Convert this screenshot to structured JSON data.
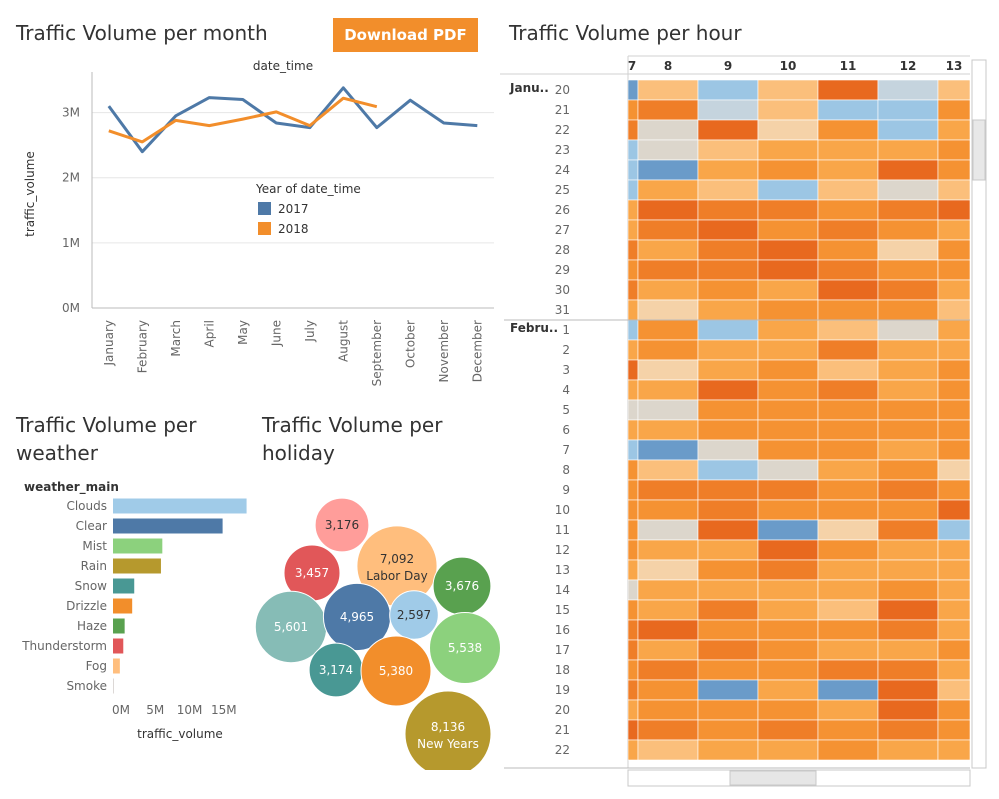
{
  "download_label": "Download PDF",
  "colors": {
    "series_2017": "#4e79a7",
    "series_2018": "#f28e2b",
    "grid": "#e6e6e6",
    "axis": "#bbbbbb"
  },
  "month_panel": {
    "title": "Traffic Volume per month"
  },
  "weather_panel": {
    "title": "Traffic Volume per weather"
  },
  "holiday_panel": {
    "title": "Traffic Volume per holiday"
  },
  "hour_panel": {
    "title": "Traffic Volume per hour"
  },
  "chart_data": [
    {
      "type": "line",
      "title": "Traffic Volume per month",
      "xlabel": "date_time",
      "ylabel": "traffic_volume",
      "ylim": [
        0,
        3500000
      ],
      "y_ticks": [
        {
          "v": 0,
          "label": "0M"
        },
        {
          "v": 1000000,
          "label": "1M"
        },
        {
          "v": 2000000,
          "label": "2M"
        },
        {
          "v": 3000000,
          "label": "3M"
        }
      ],
      "categories": [
        "January",
        "February",
        "March",
        "April",
        "May",
        "June",
        "July",
        "August",
        "September",
        "October",
        "November",
        "December"
      ],
      "legend_title": "Year of date_time",
      "legend_position": "middle-right",
      "grid": true,
      "series": [
        {
          "name": "2017",
          "values": [
            3100000,
            2400000,
            2950000,
            3230000,
            3200000,
            2840000,
            2770000,
            3380000,
            2770000,
            3190000,
            2840000,
            2800000
          ]
        },
        {
          "name": "2018",
          "values": [
            2720000,
            2550000,
            2880000,
            2800000,
            2900000,
            3010000,
            2800000,
            3220000,
            3090000,
            null,
            null,
            null
          ]
        }
      ]
    },
    {
      "type": "bar",
      "orientation": "horizontal",
      "title": "Traffic Volume per weather",
      "category_header": "weather_main",
      "xlabel": "traffic_volume",
      "xlim": [
        0,
        20000000
      ],
      "x_ticks": [
        {
          "v": 0,
          "label": "0M"
        },
        {
          "v": 5000000,
          "label": "5M"
        },
        {
          "v": 10000000,
          "label": "10M"
        },
        {
          "v": 15000000,
          "label": "15M"
        }
      ],
      "categories": [
        "Clouds",
        "Clear",
        "Mist",
        "Rain",
        "Snow",
        "Drizzle",
        "Haze",
        "Thunderstorm",
        "Fog",
        "Smoke"
      ],
      "values": [
        19500000,
        16000000,
        7200000,
        7000000,
        3100000,
        2800000,
        1700000,
        1500000,
        1000000,
        50000
      ],
      "colors": [
        "#a0cbe8",
        "#4e79a7",
        "#8cd17d",
        "#b6992d",
        "#499894",
        "#f28e2b",
        "#59a14f",
        "#e15759",
        "#ffbe7d",
        "#bab0ac"
      ]
    },
    {
      "type": "bubble",
      "title": "Traffic Volume per holiday",
      "bubbles": [
        {
          "value": 3176,
          "label": "",
          "color": "#ff9d9a"
        },
        {
          "value": 7092,
          "label": "Labor Day",
          "color": "#ffbe7d"
        },
        {
          "value": 3457,
          "label": "",
          "color": "#e15759"
        },
        {
          "value": 3676,
          "label": "",
          "color": "#59a14f"
        },
        {
          "value": 5601,
          "label": "",
          "color": "#86bcb6"
        },
        {
          "value": 4965,
          "label": "",
          "color": "#4e79a7"
        },
        {
          "value": 2597,
          "label": "",
          "color": "#a0cbe8"
        },
        {
          "value": 5538,
          "label": "",
          "color": "#8cd17d"
        },
        {
          "value": 3174,
          "label": "",
          "color": "#499894"
        },
        {
          "value": 5380,
          "label": "",
          "color": "#f28e2b"
        },
        {
          "value": 8136,
          "label": "New Years",
          "color": "#b6992d"
        }
      ]
    },
    {
      "type": "heatmap",
      "title": "Traffic Volume per hour",
      "columns": [
        "7",
        "8",
        "9",
        "10",
        "11",
        "12",
        "13"
      ],
      "groups": [
        {
          "label": "Janu..",
          "rows": [
            "20",
            "21",
            "22",
            "23",
            "24",
            "25",
            "26",
            "27",
            "28",
            "29",
            "30",
            "31"
          ]
        },
        {
          "label": "Febru..",
          "rows": [
            "1",
            "2",
            "3",
            "4",
            "5",
            "6",
            "7",
            "8",
            "9",
            "10",
            "11",
            "12",
            "13",
            "14",
            "15",
            "16",
            "17",
            "18",
            "19",
            "20",
            "21",
            "22"
          ]
        }
      ],
      "palette": [
        "#6a9bc9",
        "#9cc6e4",
        "#c5d4de",
        "#dcd6cc",
        "#f5d2a8",
        "#fbbf7b",
        "#f9a649",
        "#f59232",
        "#ef7e28",
        "#e8691f"
      ],
      "values": [
        [
          0,
          5,
          1,
          5,
          9,
          2,
          5
        ],
        [
          7,
          8,
          2,
          5,
          1,
          1,
          7
        ],
        [
          8,
          3,
          9,
          4,
          7,
          1,
          6
        ],
        [
          1,
          3,
          5,
          6,
          6,
          6,
          7
        ],
        [
          1,
          0,
          6,
          7,
          6,
          9,
          7
        ],
        [
          1,
          6,
          5,
          1,
          5,
          3,
          5
        ],
        [
          6,
          9,
          8,
          8,
          7,
          8,
          9
        ],
        [
          6,
          8,
          9,
          7,
          8,
          7,
          6
        ],
        [
          8,
          6,
          8,
          9,
          7,
          4,
          7
        ],
        [
          7,
          8,
          8,
          9,
          8,
          7,
          7
        ],
        [
          8,
          6,
          7,
          6,
          9,
          8,
          6
        ],
        [
          6,
          4,
          6,
          7,
          7,
          7,
          5
        ],
        [
          1,
          7,
          1,
          6,
          5,
          3,
          6
        ],
        [
          6,
          7,
          6,
          6,
          8,
          6,
          6
        ],
        [
          9,
          4,
          6,
          7,
          5,
          6,
          7
        ],
        [
          6,
          6,
          9,
          7,
          8,
          6,
          7
        ],
        [
          3,
          3,
          7,
          7,
          7,
          7,
          7
        ],
        [
          6,
          6,
          7,
          7,
          7,
          7,
          7
        ],
        [
          1,
          0,
          3,
          7,
          7,
          6,
          7
        ],
        [
          7,
          5,
          1,
          3,
          6,
          7,
          4
        ],
        [
          7,
          8,
          8,
          8,
          7,
          8,
          7
        ],
        [
          7,
          7,
          8,
          7,
          7,
          7,
          9
        ],
        [
          7,
          3,
          9,
          0,
          4,
          8,
          1
        ],
        [
          7,
          6,
          6,
          9,
          7,
          6,
          6
        ],
        [
          6,
          4,
          7,
          8,
          6,
          6,
          6
        ],
        [
          3,
          6,
          6,
          6,
          6,
          7,
          6
        ],
        [
          7,
          6,
          8,
          6,
          5,
          9,
          6
        ],
        [
          8,
          9,
          7,
          7,
          7,
          8,
          6
        ],
        [
          8,
          6,
          8,
          7,
          6,
          6,
          7
        ],
        [
          7,
          8,
          7,
          7,
          8,
          8,
          6
        ],
        [
          8,
          7,
          0,
          6,
          0,
          9,
          5
        ],
        [
          6,
          7,
          7,
          7,
          6,
          9,
          7
        ],
        [
          9,
          8,
          7,
          8,
          7,
          8,
          7
        ],
        [
          6,
          5,
          6,
          6,
          7,
          6,
          6
        ]
      ]
    }
  ]
}
